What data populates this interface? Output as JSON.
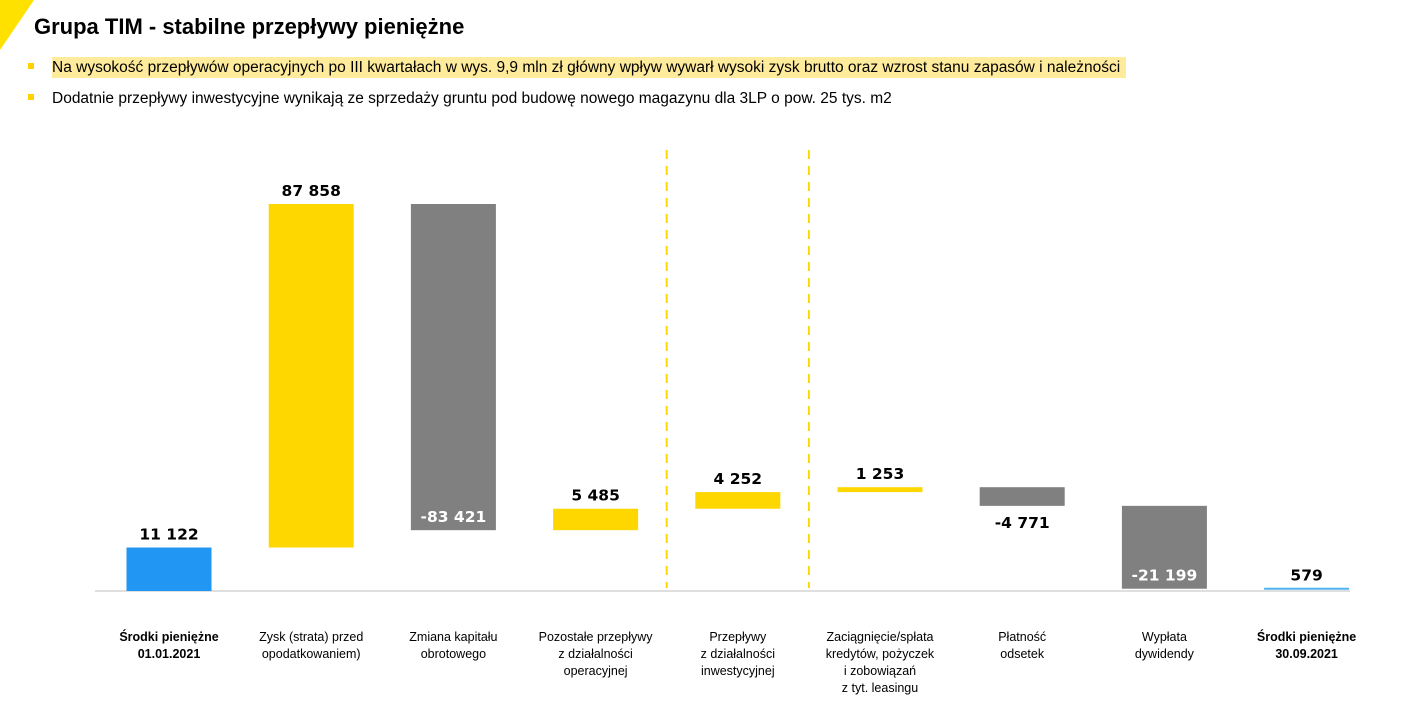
{
  "header": {
    "title": "Grupa TIM - stabilne przepływy pieniężne",
    "bullets": [
      "Na wysokość przepływów operacyjnych po III kwartałach w wys. 9,9 mln zł główny wpływ wywarł wysoki zysk brutto oraz wzrost stanu zapasów i należności",
      "Dodatnie przepływy inwestycyjne wynikają ze sprzedaży gruntu pod budowę nowego magazynu dla 3LP o pow. 25 tys. m2"
    ]
  },
  "colors": {
    "accent_yellow": "#FFD700",
    "negative_gray": "#808080",
    "total_blue": "#2196F3",
    "cash_end_line": "#4FB3F0",
    "divider_yellow": "#FFD700"
  },
  "chart_data": {
    "type": "bar",
    "subtype": "waterfall",
    "title": "",
    "xlabel": "",
    "ylabel": "",
    "grid": false,
    "legend": "none",
    "categories": [
      [
        "Środki pieniężne",
        "01.01.2021"
      ],
      [
        "Zysk (strata) przed",
        "opodatkowaniem)"
      ],
      [
        "Zmiana kapitału",
        "obrotowego"
      ],
      [
        "Pozostałe przepływy",
        "z działalności",
        "operacyjnej"
      ],
      [
        "Przepływy",
        "z działalności",
        "inwestycyjnej"
      ],
      [
        "Zaciągnięcie/spłata",
        "kredytów, pożyczek",
        "i zobowiązań",
        "z tyt. leasingu"
      ],
      [
        "Płatność",
        "odsetek"
      ],
      [
        "Wypłata",
        "dywidendy"
      ],
      [
        "Środki pieniężne",
        "30.09.2021"
      ]
    ],
    "values": [
      11122,
      87858,
      -83421,
      5485,
      4252,
      1253,
      -4771,
      -21199,
      579
    ],
    "labels": [
      "11 122",
      "87 858",
      "-83 421",
      "5 485",
      "4 252",
      "1 253",
      "-4 771",
      "-21 199",
      "579"
    ],
    "kinds": [
      "total",
      "increase",
      "decrease",
      "increase",
      "increase",
      "increase",
      "decrease",
      "decrease",
      "total"
    ],
    "bold_categories": [
      0,
      8
    ],
    "section_dividers_after": [
      3,
      4
    ]
  }
}
